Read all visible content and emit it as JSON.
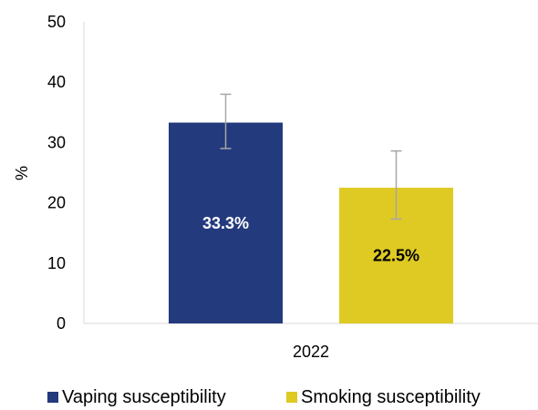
{
  "chart_data": {
    "type": "bar",
    "categories": [
      "2022"
    ],
    "ylabel": "%",
    "xlabel": "",
    "ylim": [
      0,
      50
    ],
    "yticks": [
      0,
      10,
      20,
      30,
      40,
      50
    ],
    "grid": false,
    "legend_position": "bottom",
    "series": [
      {
        "name": "Vaping susceptibility",
        "values": [
          33.3
        ],
        "error_low": [
          29.0
        ],
        "error_high": [
          38.0
        ],
        "data_label": "33.3%",
        "color": "#233a7d",
        "label_color": "#ffffff"
      },
      {
        "name": "Smoking susceptibility",
        "values": [
          22.5
        ],
        "error_low": [
          17.3
        ],
        "error_high": [
          28.6
        ],
        "data_label": "22.5%",
        "color": "#dfca23",
        "label_color": "#000000"
      }
    ]
  }
}
